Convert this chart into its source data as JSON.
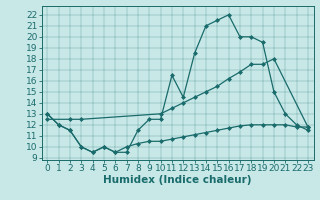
{
  "xlabel": "Humidex (Indice chaleur)",
  "background_color": "#c8e8e8",
  "line_color": "#1a6b6b",
  "xlim": [
    -0.5,
    23.5
  ],
  "ylim": [
    8.8,
    22.8
  ],
  "xticks": [
    0,
    1,
    2,
    3,
    4,
    5,
    6,
    7,
    8,
    9,
    10,
    11,
    12,
    13,
    14,
    15,
    16,
    17,
    18,
    19,
    20,
    21,
    22,
    23
  ],
  "yticks": [
    9,
    10,
    11,
    12,
    13,
    14,
    15,
    16,
    17,
    18,
    19,
    20,
    21,
    22
  ],
  "line1_x": [
    0,
    1,
    2,
    3,
    4,
    5,
    6,
    7,
    8,
    9,
    10,
    11,
    12,
    13,
    14,
    15,
    16,
    17,
    18,
    19,
    20,
    21,
    22,
    23
  ],
  "line1_y": [
    13,
    12,
    11.5,
    10,
    9.5,
    10,
    9.5,
    9.5,
    11.5,
    12.5,
    12.5,
    16.5,
    14.5,
    18.5,
    21,
    21.5,
    22,
    20,
    20,
    19.5,
    15,
    13,
    12,
    11.5
  ],
  "line2_x": [
    0,
    2,
    3,
    10,
    11,
    12,
    13,
    14,
    15,
    16,
    17,
    18,
    19,
    20,
    23
  ],
  "line2_y": [
    12.5,
    12.5,
    12.5,
    13.0,
    13.5,
    14.0,
    14.5,
    15.0,
    15.5,
    16.2,
    16.8,
    17.5,
    17.5,
    18.0,
    11.8
  ],
  "line3_x": [
    0,
    1,
    2,
    3,
    4,
    5,
    6,
    7,
    8,
    9,
    10,
    11,
    12,
    13,
    14,
    15,
    16,
    17,
    18,
    19,
    20,
    21,
    22,
    23
  ],
  "line3_y": [
    13,
    12,
    11.5,
    10,
    9.5,
    10,
    9.5,
    10,
    10.3,
    10.5,
    10.5,
    10.7,
    10.9,
    11.1,
    11.3,
    11.5,
    11.7,
    11.9,
    12.0,
    12.0,
    12.0,
    12.0,
    11.8,
    11.8
  ],
  "fontsize_tick": 6.5,
  "fontsize_label": 7.5
}
